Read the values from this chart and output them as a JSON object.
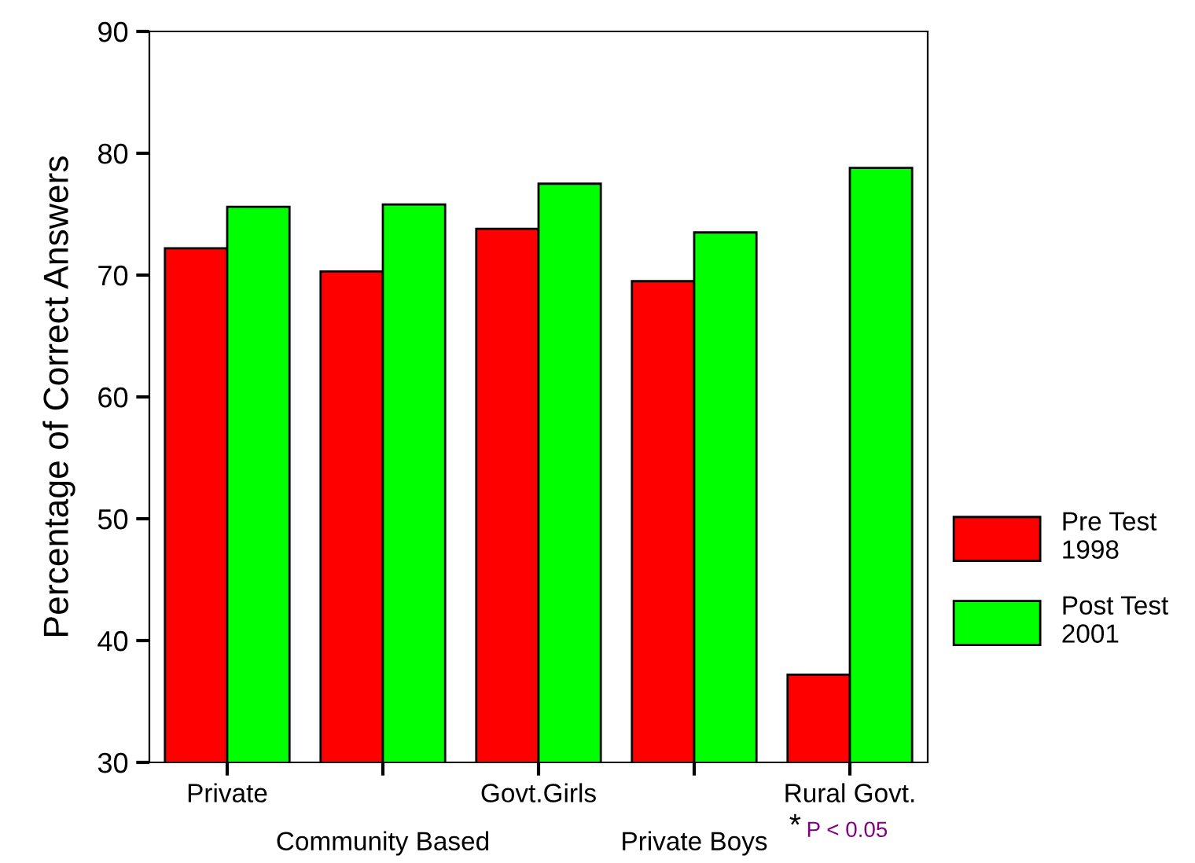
{
  "chart_data": {
    "type": "bar",
    "ylabel": "Percentage of Correct Answers",
    "categories": [
      "Private",
      "Community Based",
      "Govt.Girls",
      "Private Boys",
      "Rural Govt."
    ],
    "series": [
      {
        "name": "Pre Test\n1998",
        "color": "#ff0000",
        "values": [
          72.2,
          70.3,
          73.8,
          69.5,
          37.2
        ]
      },
      {
        "name": "Post Test\n2001",
        "color": "#00ff00",
        "values": [
          75.6,
          75.8,
          77.5,
          73.5,
          78.8
        ]
      }
    ],
    "ylim": [
      30,
      90
    ],
    "yticks": [
      30,
      40,
      50,
      60,
      70,
      80,
      90
    ],
    "grid": false,
    "legend": "right",
    "annotations": [
      "*",
      "P < 0.05"
    ]
  }
}
